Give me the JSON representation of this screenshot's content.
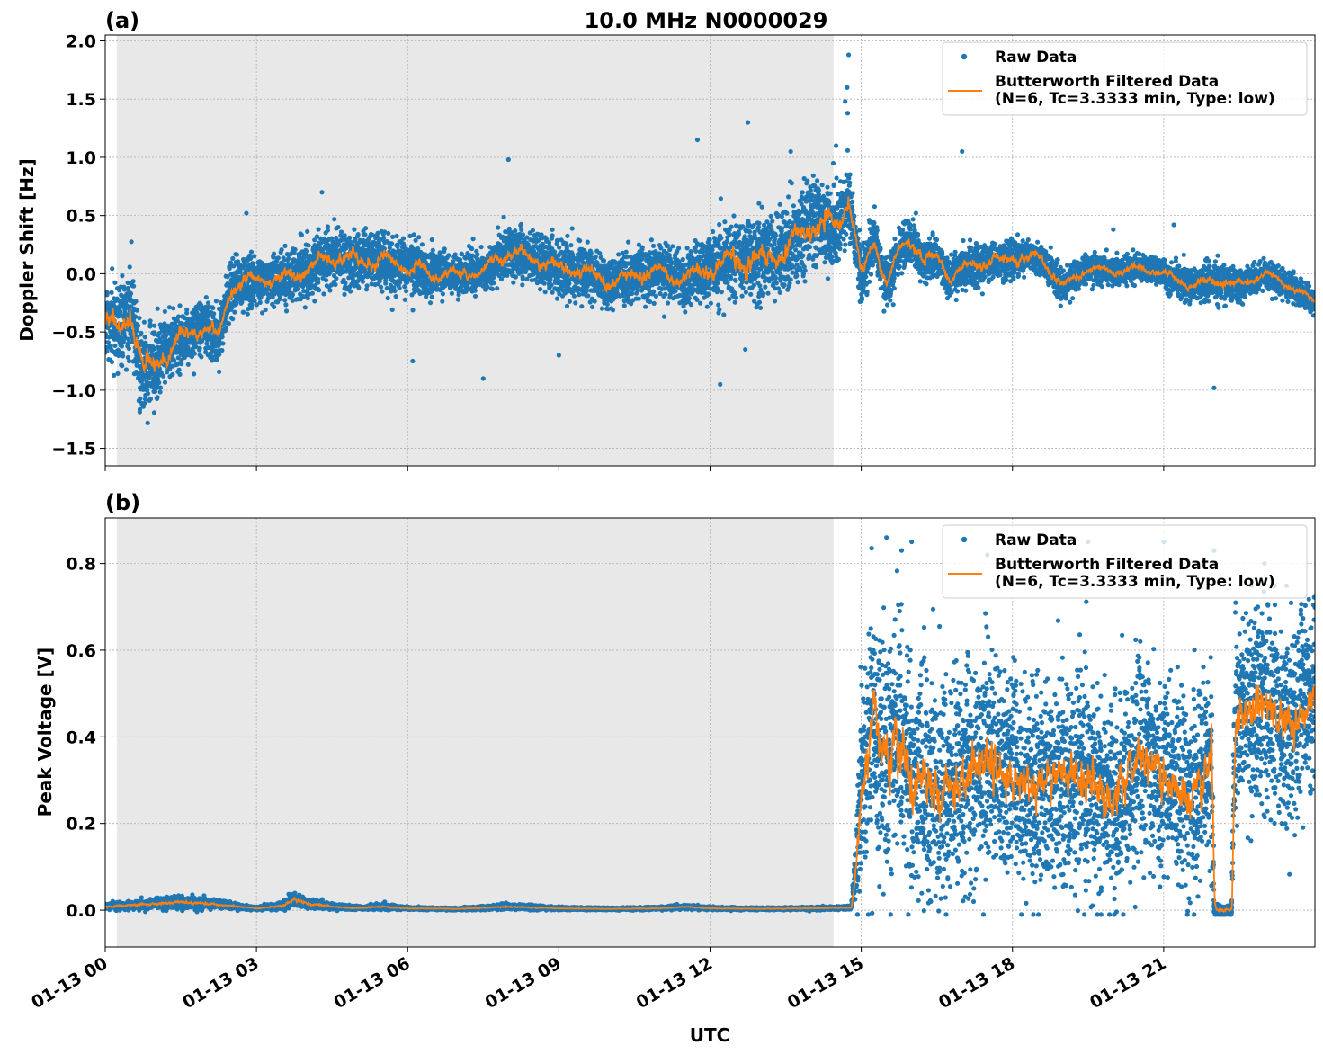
{
  "chart_data": [
    {
      "panel": "(a)",
      "type": "scatter",
      "title": "10.0 MHz N0000029",
      "ylabel": "Doppler Shift [Hz]",
      "xlabel": "",
      "ylim": [
        -1.65,
        2.05
      ],
      "yticks": [
        -1.5,
        -1.0,
        -0.5,
        0.0,
        0.5,
        1.0,
        1.5,
        2.0
      ],
      "ytick_labels": [
        "−1.5",
        "−1.0",
        "−0.5",
        "0.0",
        "0.5",
        "1.0",
        "1.5",
        "2.0"
      ],
      "xlim_hours": [
        0,
        24
      ],
      "shaded_region_hours": [
        0.23,
        14.45
      ],
      "grid": true,
      "legend_position": "top-right",
      "series": [
        {
          "name": "Raw Data",
          "kind": "scatter",
          "color": "#1f77b4"
        },
        {
          "name": "Butterworth Filtered Data\n(N=6, Tc=3.3333 min, Type: low)",
          "kind": "line",
          "color": "#ff7f0e"
        }
      ],
      "trend_hours": [
        0,
        0.25,
        0.5,
        0.75,
        1.0,
        1.25,
        1.5,
        1.75,
        2.0,
        2.25,
        2.5,
        3.0,
        3.5,
        4.0,
        4.5,
        5.0,
        5.5,
        6.0,
        6.5,
        7.0,
        7.5,
        8.0,
        8.5,
        9.0,
        9.5,
        10.0,
        10.5,
        11.0,
        11.5,
        12.0,
        12.5,
        13.0,
        13.5,
        14.0,
        14.5,
        14.75,
        15.0,
        15.25,
        15.5,
        15.75,
        16.0,
        16.25,
        16.5,
        16.75,
        17.0,
        17.5,
        18.0,
        18.5,
        19.0,
        19.5,
        20.0,
        20.5,
        21.0,
        21.5,
        22.0,
        22.5,
        23.0,
        23.5,
        24.0
      ],
      "trend_values": [
        -0.4,
        -0.48,
        -0.3,
        -0.85,
        -0.8,
        -0.65,
        -0.55,
        -0.5,
        -0.45,
        -0.55,
        -0.1,
        -0.05,
        -0.05,
        0.05,
        0.15,
        0.1,
        0.12,
        0.05,
        0.0,
        0.0,
        0.02,
        0.2,
        0.12,
        0.05,
        0.02,
        -0.08,
        0.0,
        0.02,
        -0.05,
        0.05,
        0.12,
        0.12,
        0.2,
        0.45,
        0.4,
        0.65,
        -0.05,
        0.3,
        -0.1,
        0.2,
        0.3,
        0.1,
        0.15,
        -0.05,
        0.05,
        0.1,
        0.12,
        0.15,
        -0.1,
        0.05,
        0.02,
        0.05,
        0.0,
        -0.1,
        -0.05,
        -0.1,
        0.0,
        -0.1,
        -0.25
      ],
      "spread_values": [
        0.25,
        0.3,
        0.35,
        0.35,
        0.3,
        0.25,
        0.22,
        0.2,
        0.18,
        0.2,
        0.2,
        0.18,
        0.18,
        0.22,
        0.22,
        0.2,
        0.2,
        0.18,
        0.18,
        0.15,
        0.15,
        0.2,
        0.18,
        0.2,
        0.2,
        0.18,
        0.2,
        0.2,
        0.2,
        0.25,
        0.28,
        0.3,
        0.32,
        0.35,
        0.3,
        0.25,
        0.2,
        0.18,
        0.18,
        0.18,
        0.16,
        0.16,
        0.15,
        0.15,
        0.15,
        0.15,
        0.15,
        0.12,
        0.12,
        0.1,
        0.1,
        0.1,
        0.1,
        0.12,
        0.14,
        0.12,
        0.1,
        0.1,
        0.1
      ],
      "outliers": [
        [
          14.75,
          1.88
        ],
        [
          14.72,
          1.6
        ],
        [
          14.68,
          1.48
        ],
        [
          14.73,
          1.38
        ],
        [
          12.75,
          1.3
        ],
        [
          11.75,
          1.15
        ],
        [
          8.0,
          0.98
        ],
        [
          2.8,
          0.52
        ],
        [
          4.3,
          0.7
        ],
        [
          14.5,
          1.1
        ],
        [
          13.6,
          1.05
        ],
        [
          12.2,
          -0.95
        ],
        [
          12.7,
          -0.65
        ],
        [
          7.5,
          -0.9
        ],
        [
          6.1,
          -0.75
        ],
        [
          9.0,
          -0.7
        ],
        [
          22.0,
          -0.98
        ],
        [
          20.0,
          0.38
        ],
        [
          21.2,
          0.42
        ],
        [
          17.0,
          1.05
        ]
      ]
    },
    {
      "panel": "(b)",
      "type": "scatter",
      "title": "",
      "ylabel": "Peak Voltage [V]",
      "xlabel": "UTC",
      "ylim": [
        -0.085,
        0.905
      ],
      "yticks": [
        0.0,
        0.2,
        0.4,
        0.6,
        0.8
      ],
      "ytick_labels": [
        "0.0",
        "0.2",
        "0.4",
        "0.6",
        "0.8"
      ],
      "xlim_hours": [
        0,
        24
      ],
      "xticks_hours": [
        0,
        3,
        6,
        9,
        12,
        15,
        18,
        21
      ],
      "xtick_labels": [
        "01-13 00",
        "01-13 03",
        "01-13 06",
        "01-13 09",
        "01-13 12",
        "01-13 15",
        "01-13 18",
        "01-13 21"
      ],
      "shaded_region_hours": [
        0.23,
        14.45
      ],
      "grid": true,
      "legend_position": "top-right",
      "series": [
        {
          "name": "Raw Data",
          "kind": "scatter",
          "color": "#1f77b4"
        },
        {
          "name": "Butterworth Filtered Data\n(N=6, Tc=3.3333 min, Type: low)",
          "kind": "line",
          "color": "#ff7f0e"
        }
      ],
      "trend_hours": [
        0,
        0.5,
        1.0,
        1.5,
        2.0,
        2.5,
        3.0,
        3.5,
        3.75,
        4.0,
        4.5,
        5.0,
        5.5,
        6.0,
        7.0,
        8.0,
        9.0,
        10.0,
        11.0,
        11.5,
        12.0,
        13.0,
        14.0,
        14.5,
        14.8,
        14.9,
        15.0,
        15.25,
        15.5,
        15.75,
        16.0,
        16.25,
        16.5,
        17.0,
        17.5,
        18.0,
        18.5,
        19.0,
        19.5,
        20.0,
        20.5,
        21.0,
        21.5,
        21.95,
        22.0,
        22.3,
        22.35,
        22.4,
        22.5,
        23.0,
        23.5,
        24.0
      ],
      "trend_values": [
        0.008,
        0.012,
        0.015,
        0.018,
        0.015,
        0.01,
        0.004,
        0.01,
        0.025,
        0.015,
        0.008,
        0.005,
        0.008,
        0.004,
        0.003,
        0.008,
        0.004,
        0.003,
        0.004,
        0.008,
        0.004,
        0.003,
        0.004,
        0.005,
        0.006,
        0.1,
        0.3,
        0.45,
        0.35,
        0.4,
        0.28,
        0.32,
        0.25,
        0.3,
        0.35,
        0.3,
        0.28,
        0.32,
        0.3,
        0.25,
        0.35,
        0.3,
        0.25,
        0.35,
        0.0,
        0.0,
        0.0,
        0.4,
        0.45,
        0.48,
        0.42,
        0.5
      ],
      "spread_values": [
        0.006,
        0.008,
        0.01,
        0.012,
        0.01,
        0.006,
        0.003,
        0.008,
        0.015,
        0.01,
        0.006,
        0.004,
        0.006,
        0.003,
        0.002,
        0.006,
        0.003,
        0.002,
        0.003,
        0.005,
        0.003,
        0.002,
        0.003,
        0.003,
        0.004,
        0.08,
        0.22,
        0.25,
        0.24,
        0.25,
        0.24,
        0.24,
        0.22,
        0.22,
        0.22,
        0.2,
        0.2,
        0.2,
        0.22,
        0.2,
        0.22,
        0.2,
        0.2,
        0.22,
        0.01,
        0.01,
        0.01,
        0.2,
        0.2,
        0.2,
        0.2,
        0.2
      ],
      "outliers": [
        [
          15.5,
          0.86
        ],
        [
          16.0,
          0.85
        ],
        [
          15.8,
          0.83
        ],
        [
          19.5,
          0.85
        ],
        [
          21.0,
          0.85
        ],
        [
          22.0,
          0.83
        ],
        [
          17.5,
          0.82
        ],
        [
          23.0,
          0.8
        ]
      ]
    }
  ]
}
